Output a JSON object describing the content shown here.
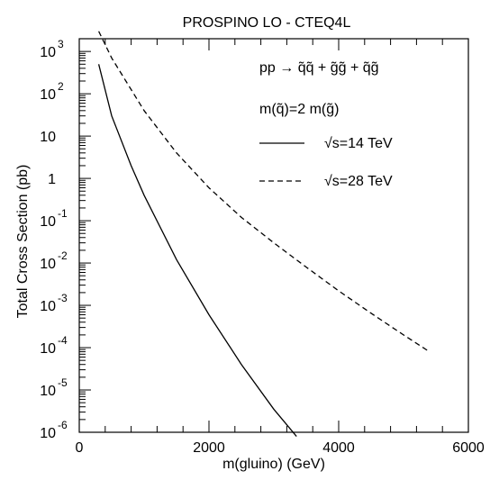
{
  "chart_data": {
    "type": "line",
    "title": "PROSPINO LO - CTEQ4L",
    "xlabel": "m(gluino)  (GeV)",
    "ylabel": "Total Cross Section (pb)",
    "xlim": [
      0,
      6000
    ],
    "ylim": [
      1e-06,
      2000
    ],
    "yscale": "log",
    "x_ticks": [
      0,
      2000,
      4000,
      6000
    ],
    "y_ticks": [
      {
        "base": "10",
        "exp": "-6",
        "value": 1e-06
      },
      {
        "base": "10",
        "exp": "-5",
        "value": 1e-05
      },
      {
        "base": "10",
        "exp": "-4",
        "value": 0.0001
      },
      {
        "base": "10",
        "exp": "-3",
        "value": 0.001
      },
      {
        "base": "10",
        "exp": "-2",
        "value": 0.01
      },
      {
        "base": "10",
        "exp": "-1",
        "value": 0.1
      },
      {
        "base": "1",
        "exp": "",
        "value": 1
      },
      {
        "base": "10",
        "exp": "",
        "value": 10
      },
      {
        "base": "10",
        "exp": "2",
        "value": 100
      },
      {
        "base": "10",
        "exp": "3",
        "value": 1000
      }
    ],
    "annotations": {
      "process": "pp → q̃q̃ + g̃g̃ + q̃g̃",
      "mass_relation": "m(q̃)=2 m(g̃)"
    },
    "grid": false,
    "legend_position": "upper-right",
    "series": [
      {
        "name": "√s=14 TeV",
        "style": "solid",
        "color": "#000000",
        "points": [
          [
            300,
            500
          ],
          [
            500,
            30
          ],
          [
            800,
            2.0
          ],
          [
            1000,
            0.4
          ],
          [
            1500,
            0.012
          ],
          [
            2000,
            0.0006
          ],
          [
            2500,
            4e-05
          ],
          [
            3000,
            3.5e-06
          ],
          [
            3350,
            8e-07
          ]
        ]
      },
      {
        "name": "√s=28 TeV",
        "style": "dashed",
        "color": "#000000",
        "points": [
          [
            300,
            3000
          ],
          [
            500,
            700
          ],
          [
            1000,
            40
          ],
          [
            1500,
            4
          ],
          [
            2000,
            0.6
          ],
          [
            2500,
            0.12
          ],
          [
            3000,
            0.03
          ],
          [
            3500,
            0.008
          ],
          [
            4000,
            0.0022
          ],
          [
            4500,
            0.00065
          ],
          [
            5000,
            0.0002
          ],
          [
            5400,
            8e-05
          ]
        ]
      }
    ]
  }
}
